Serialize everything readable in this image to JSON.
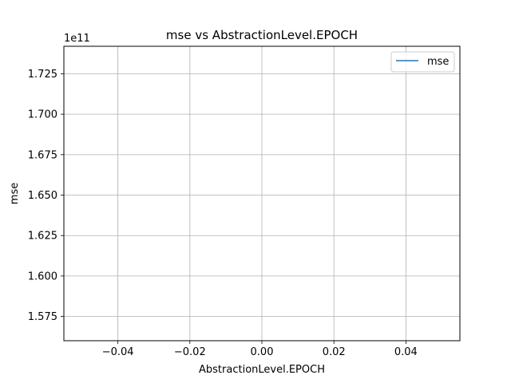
{
  "chart_data": {
    "type": "line",
    "title": "mse vs AbstractionLevel.EPOCH",
    "xlabel": "AbstractionLevel.EPOCH",
    "ylabel": "mse",
    "y_offset_label": "1e11",
    "xlim": [
      -0.055,
      0.055
    ],
    "ylim": [
      1.56,
      1.742
    ],
    "y_scale_factor": 100000000000.0,
    "xticks": [
      -0.04,
      -0.02,
      0.0,
      0.02,
      0.04
    ],
    "xtick_labels": [
      "−0.04",
      "−0.02",
      "0.00",
      "0.02",
      "0.04"
    ],
    "yticks": [
      1.575,
      1.6,
      1.625,
      1.65,
      1.675,
      1.7,
      1.725
    ],
    "ytick_labels": [
      "1.575",
      "1.600",
      "1.625",
      "1.650",
      "1.675",
      "1.700",
      "1.725"
    ],
    "grid": true,
    "legend_position": "top-right",
    "series": [
      {
        "name": "mse",
        "color": "#1f77b4",
        "x": [],
        "y": []
      }
    ]
  }
}
